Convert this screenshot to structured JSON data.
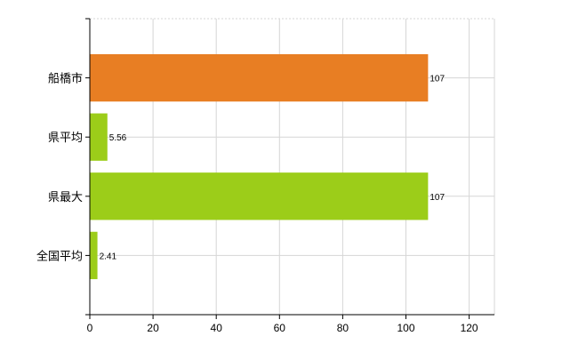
{
  "chart_data": {
    "type": "bar",
    "orientation": "horizontal",
    "categories": [
      "船橋市",
      "県平均",
      "県最大",
      "全国平均"
    ],
    "values": [
      107,
      5.56,
      107,
      2.41
    ],
    "value_labels": [
      "107",
      "5.56",
      "107",
      "2.41"
    ],
    "bar_colors": [
      "#e87e23",
      "#9ccd19",
      "#9ccd19",
      "#9ccd19"
    ],
    "title": "",
    "xlabel": "",
    "ylabel": "",
    "xlim": [
      0,
      128
    ],
    "xticks": [
      0,
      20,
      40,
      60,
      80,
      100,
      120
    ],
    "grid": true,
    "legend": "none"
  }
}
